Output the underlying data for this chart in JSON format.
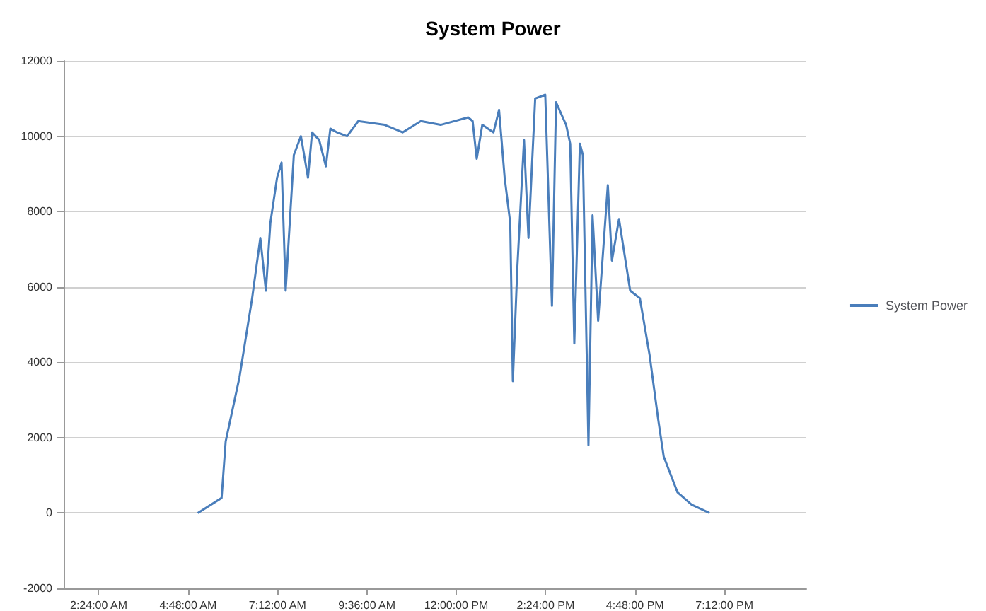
{
  "chart_data": {
    "type": "line",
    "title": "System Power",
    "x": [
      5.06,
      5.7,
      5.81,
      6.18,
      6.52,
      6.74,
      6.89,
      7.01,
      7.19,
      7.31,
      7.42,
      7.53,
      7.64,
      7.83,
      8.02,
      8.13,
      8.32,
      8.5,
      8.62,
      8.8,
      9.07,
      9.37,
      10.08,
      10.56,
      11.05,
      11.58,
      12.32,
      12.44,
      12.55,
      12.7,
      13.0,
      13.15,
      13.3,
      13.45,
      13.52,
      13.64,
      13.82,
      13.94,
      14.12,
      14.39,
      14.57,
      14.68,
      14.95,
      15.06,
      15.17,
      15.32,
      15.4,
      15.55,
      15.66,
      15.81,
      16.07,
      16.18,
      16.37,
      16.67,
      16.93,
      17.19,
      17.42,
      17.57,
      17.94,
      18.32,
      18.8
    ],
    "series": [
      {
        "name": "System Power",
        "color": "#4a7ebb",
        "values": [
          0,
          400,
          1900,
          3600,
          5700,
          7300,
          5900,
          7700,
          8900,
          9300,
          5900,
          7700,
          9500,
          10000,
          8900,
          10100,
          9900,
          9200,
          10200,
          10100,
          10000,
          10400,
          10300,
          10100,
          10400,
          10300,
          10500,
          10400,
          9400,
          10300,
          10100,
          10700,
          8900,
          7700,
          3500,
          6500,
          9900,
          7300,
          11000,
          11100,
          5500,
          10900,
          10300,
          9800,
          4500,
          9800,
          9500,
          1800,
          7900,
          5100,
          8700,
          6700,
          7800,
          5900,
          5700,
          4200,
          2500,
          1500,
          550,
          220,
          0
        ]
      }
    ],
    "xlim": [
      1.46,
      21.4
    ],
    "xticks": [
      {
        "value": 2.4,
        "label": "2:24:00 AM"
      },
      {
        "value": 4.8,
        "label": "4:48:00 AM"
      },
      {
        "value": 7.2,
        "label": "7:12:00 AM"
      },
      {
        "value": 9.6,
        "label": "9:36:00 AM"
      },
      {
        "value": 12,
        "label": "12:00:00 PM"
      },
      {
        "value": 14.4,
        "label": "2:24:00 PM"
      },
      {
        "value": 16.8,
        "label": "4:48:00 PM"
      },
      {
        "value": 19.2,
        "label": "7:12:00 PM"
      }
    ],
    "ylim": [
      -2000,
      12000
    ],
    "yticks": [
      -2000,
      0,
      2000,
      4000,
      6000,
      8000,
      10000,
      12000
    ],
    "grid": "y",
    "legend": "right",
    "marker": "none",
    "line_style": "solid"
  }
}
